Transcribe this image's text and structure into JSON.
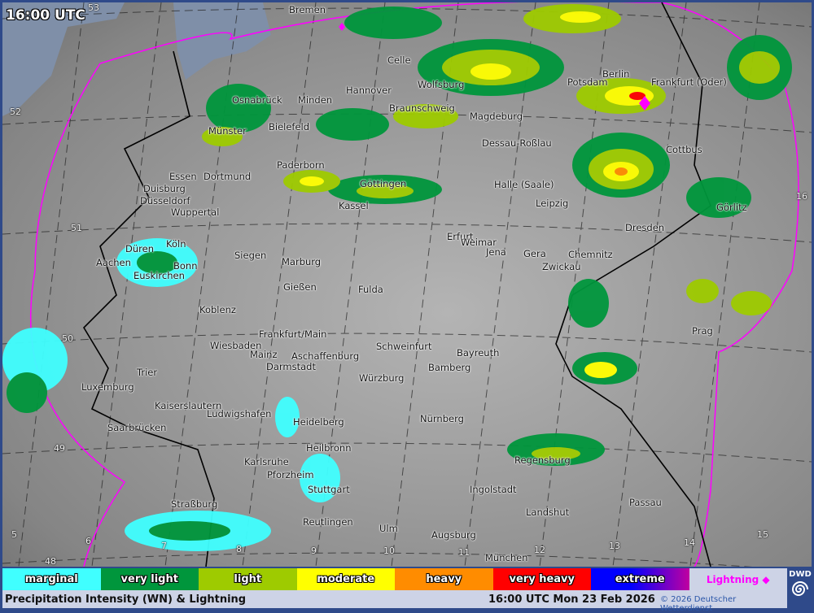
{
  "time_overlay": "16:00 UTC",
  "colors": {
    "marginal": "#40ffff",
    "very_light": "#00963c",
    "light": "#9ecb00",
    "moderate": "#ffff00",
    "heavy": "#ff8c00",
    "very_heavy": "#ff0000",
    "extreme": "#0000ff",
    "lightning": "#ff00ff",
    "sea": "#7f8fa8",
    "frame": "#2f4a8a"
  },
  "legend": [
    {
      "label": "marginal",
      "color": "#40ffff"
    },
    {
      "label": "very light",
      "color": "#00963c"
    },
    {
      "label": "light",
      "color": "#9ecb00"
    },
    {
      "label": "moderate",
      "color": "#ffff00"
    },
    {
      "label": "heavy",
      "color": "#ff8c00"
    },
    {
      "label": "very heavy",
      "color": "#ff0000"
    },
    {
      "label": "extreme",
      "color": "#0000ff"
    }
  ],
  "lightning_label": "Lightning ◆",
  "footer": {
    "title": "Precipitation Intensity (WN) & Lightning",
    "datetime": "16:00 UTC Mon 23 Feb 2026",
    "copyright": "© 2026 Deutscher Wetterdienst"
  },
  "logo": "DWD",
  "cities": [
    "Bremen",
    "Celle",
    "Hannover",
    "Wolfsburg",
    "Berlin",
    "Potsdam",
    "Frankfurt (Oder)",
    "Osnabrück",
    "Minden",
    "Braunschweig",
    "Magdeburg",
    "Münster",
    "Bielefeld",
    "Dessau-Roßlau",
    "Cottbus",
    "Paderborn",
    "Essen",
    "Dortmund",
    "Duisburg",
    "Düsseldorf",
    "Wuppertal",
    "Göttingen",
    "Kassel",
    "Halle (Saale)",
    "Leipzig",
    "Dresden",
    "Görlitz",
    "Erfurt",
    "Weimar",
    "Jena",
    "Gera",
    "Chemnitz",
    "Zwickau",
    "Köln",
    "Düren",
    "Bonn",
    "Aachen",
    "Siegen",
    "Marburg",
    "Gießen",
    "Fulda",
    "Euskirchen",
    "Koblenz",
    "Prag",
    "Frankfurt/Main",
    "Wiesbaden",
    "Mainz",
    "Aschaffenburg",
    "Darmstadt",
    "Schweinfurt",
    "Bayreuth",
    "Bamberg",
    "Trier",
    "Würzburg",
    "Luxemburg",
    "Kaiserslautern",
    "Ludwigshafen",
    "Heidelberg",
    "Nürnberg",
    "Saarbrücken",
    "Heilbronn",
    "Karlsruhe",
    "Regensburg",
    "Pforzheim",
    "Stuttgart",
    "Ingolstadt",
    "Straßburg",
    "Passau",
    "Landshut",
    "Reutlingen",
    "Ulm",
    "Augsburg",
    "München"
  ],
  "grid_labels": [
    "53",
    "52",
    "51",
    "50",
    "49",
    "48",
    "16",
    "15",
    "14",
    "13",
    "12",
    "11",
    "10",
    "9",
    "8",
    "7",
    "6",
    "5"
  ]
}
